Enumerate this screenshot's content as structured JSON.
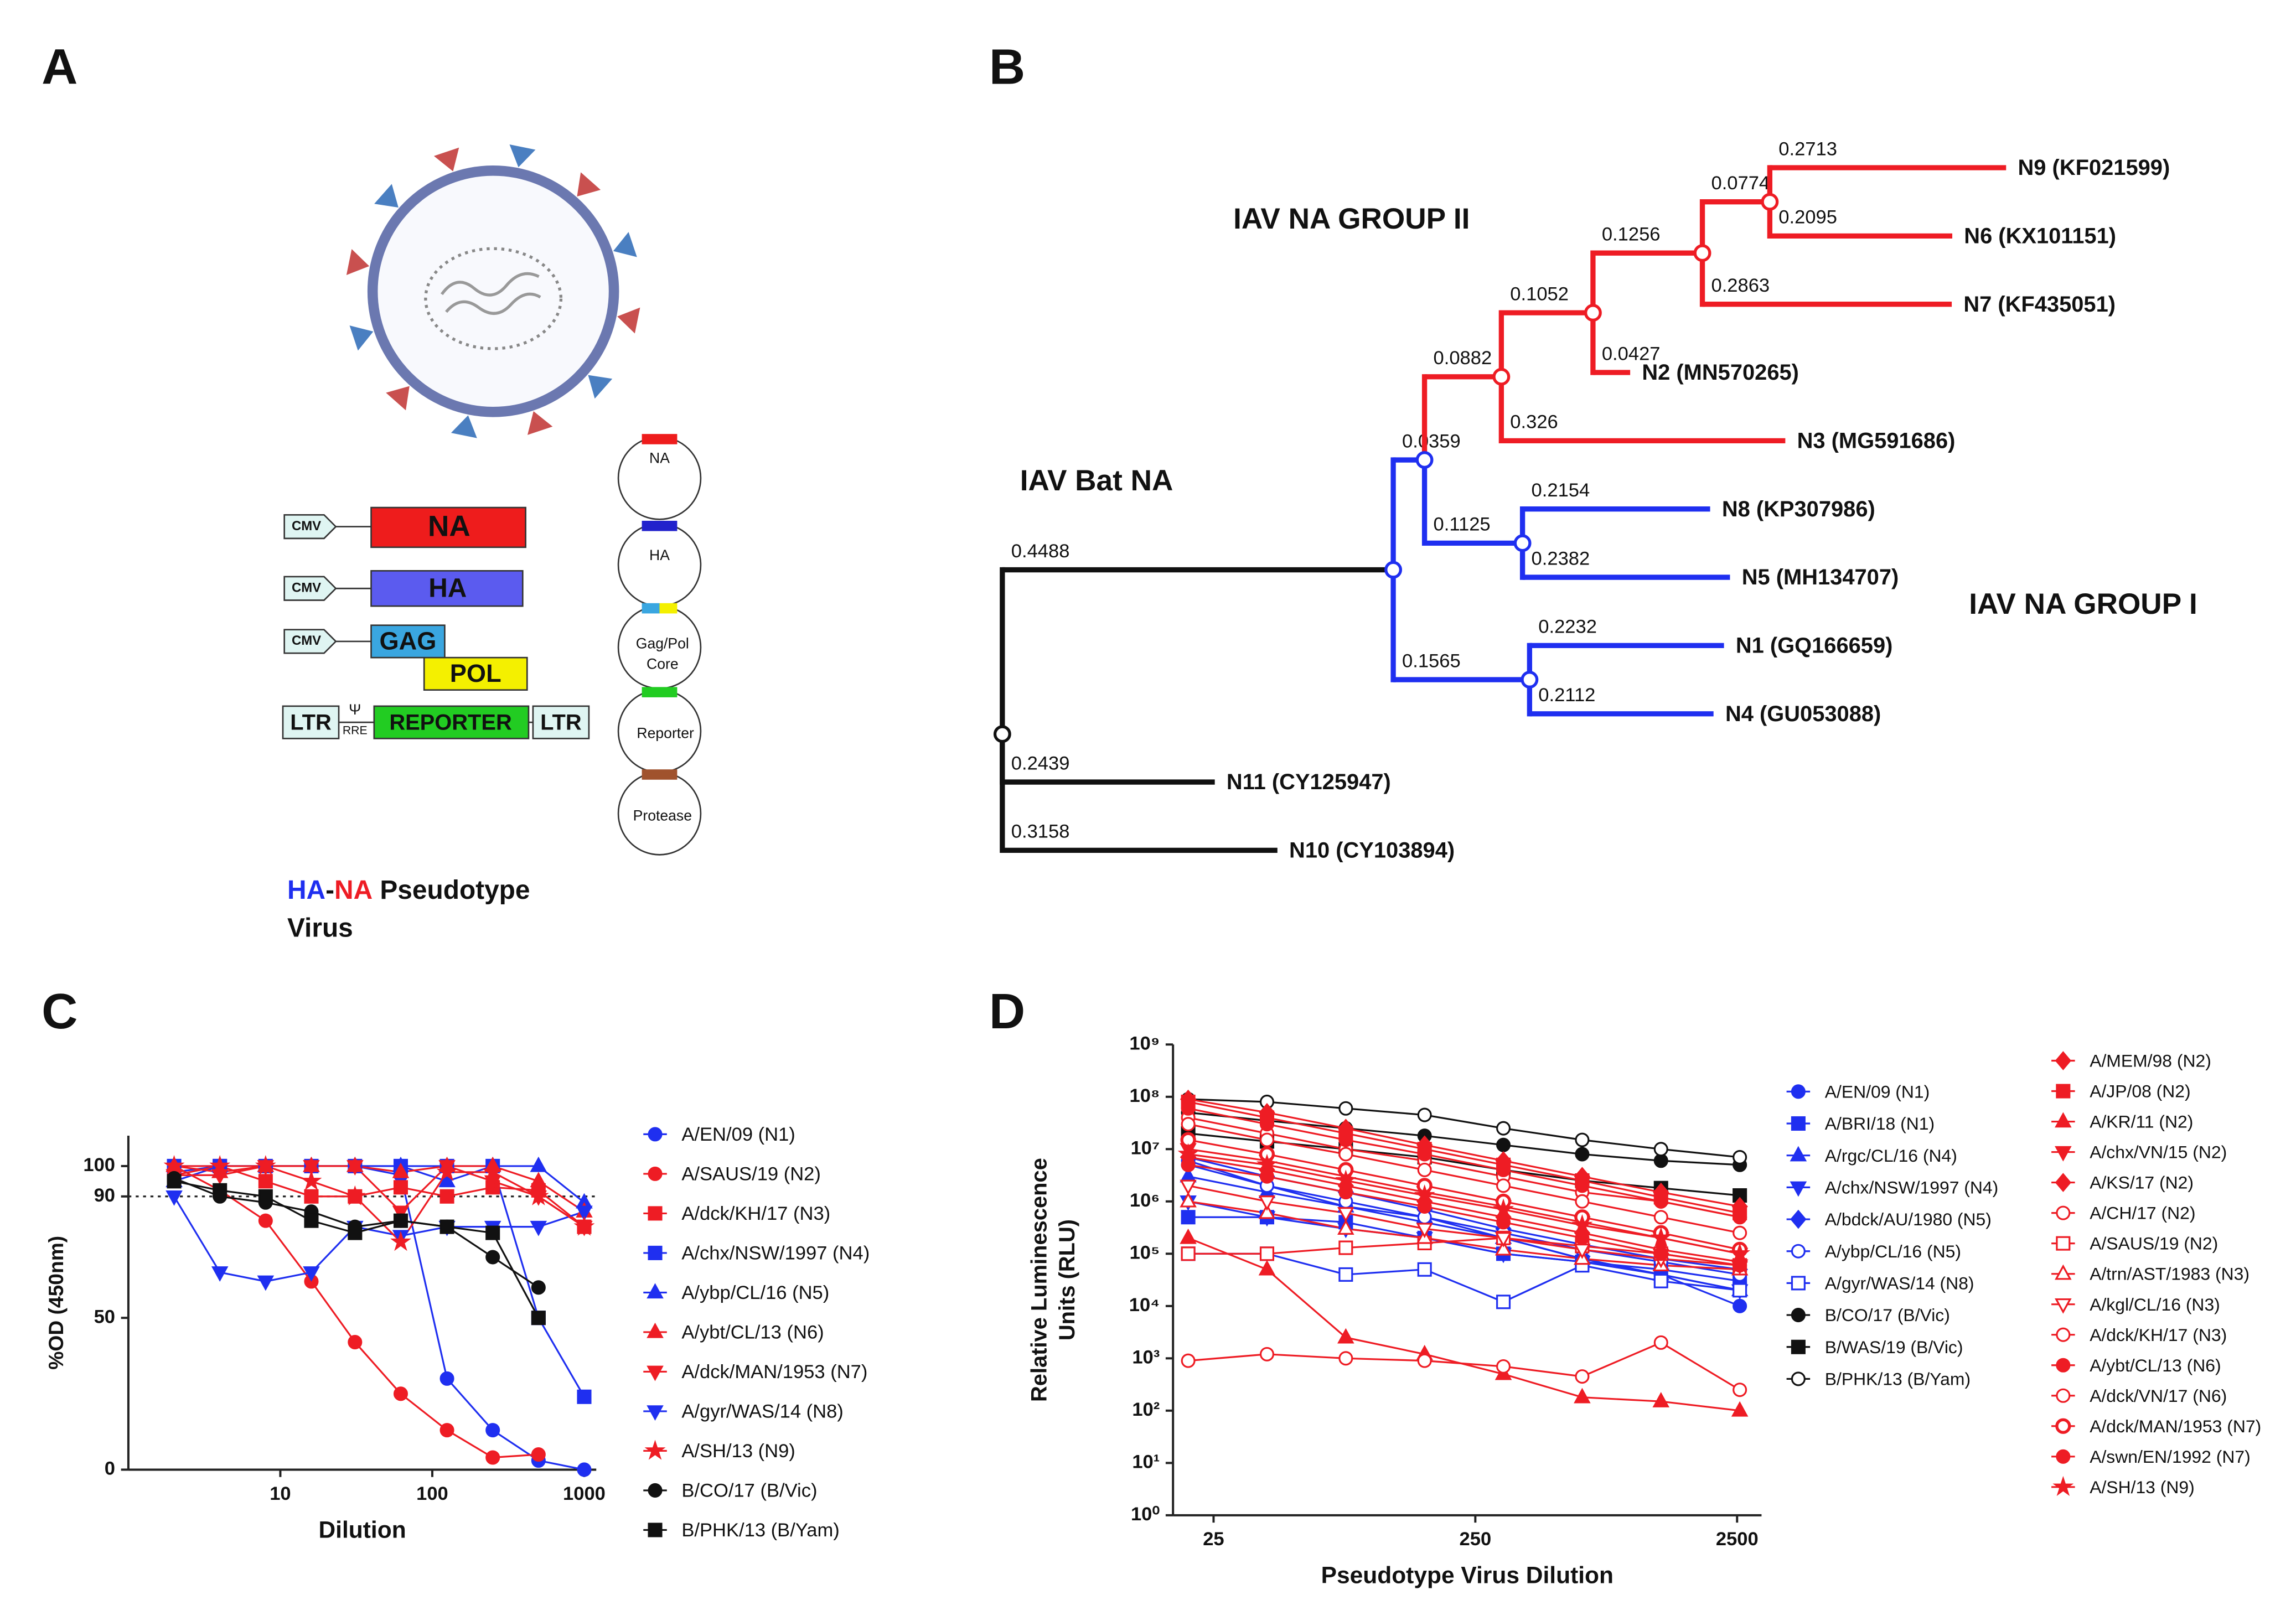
{
  "panel_a": {
    "label": "A",
    "genes": {
      "cmv": [
        "CMV",
        "CMV",
        "CMV"
      ],
      "na": "NA",
      "ha": "HA",
      "gag": "GAG",
      "pol": "POL",
      "ltr": [
        "LTR",
        "LTR"
      ],
      "psi": "Ψ",
      "rre": "RRE",
      "reporter": "REPORTER"
    },
    "plasmids": [
      [
        "NA"
      ],
      [
        "HA"
      ],
      [
        "Gag/Pol",
        "Core"
      ],
      [
        "Reporter"
      ],
      [
        "Protease"
      ]
    ],
    "caption": {
      "ha": "HA",
      "dash": "-",
      "na": "NA",
      "rest": "Pseudotype",
      "line2": "Virus"
    }
  },
  "panel_b": {
    "label": "B",
    "groups": [
      {
        "name": "IAV NA GROUP II",
        "color": "#ee1c24"
      },
      {
        "name": "IAV Bat NA",
        "color": "#111111"
      },
      {
        "name": "IAV NA GROUP I",
        "color": "#1f2ff0"
      }
    ],
    "tree": {
      "children": [
        {
          "length": 0.4488,
          "color": "#111111",
          "children": [
            {
              "length": 0.0359,
              "color": "#1f2ff0",
              "children": [
                {
                  "length": 0.0882,
                  "color": "#ee1c24",
                  "children": [
                    {
                      "length": 0.1052,
                      "color": "#ee1c24",
                      "children": [
                        {
                          "length": 0.1256,
                          "color": "#ee1c24",
                          "children": [
                            {
                              "length": 0.0774,
                              "color": "#ee1c24",
                              "children": [
                                {
                                  "length": 0.2713,
                                  "color": "#ee1c24",
                                  "name": "N9 (KF021599)"
                                },
                                {
                                  "length": 0.2095,
                                  "color": "#ee1c24",
                                  "name": "N6 (KX101151)"
                                }
                              ]
                            },
                            {
                              "length": 0.2863,
                              "color": "#ee1c24",
                              "name": "N7 (KF435051)"
                            }
                          ]
                        },
                        {
                          "length": 0.0427,
                          "color": "#ee1c24",
                          "name": "N2 (MN570265)"
                        }
                      ]
                    },
                    {
                      "length": 0.326,
                      "color": "#ee1c24",
                      "name": "N3 (MG591686)"
                    }
                  ]
                },
                {
                  "length": 0.1125,
                  "color": "#1f2ff0",
                  "children": [
                    {
                      "length": 0.2154,
                      "color": "#1f2ff0",
                      "name": "N8 (KP307986)"
                    },
                    {
                      "length": 0.2382,
                      "color": "#1f2ff0",
                      "name": "N5 (MH134707)"
                    }
                  ]
                }
              ]
            },
            {
              "length": 0.1565,
              "color": "#1f2ff0",
              "children": [
                {
                  "length": 0.2232,
                  "color": "#1f2ff0",
                  "name": "N1 (GQ166659)"
                },
                {
                  "length": 0.2112,
                  "color": "#1f2ff0",
                  "name": "N4 (GU053088)"
                }
              ]
            }
          ]
        },
        {
          "length": 0.2439,
          "color": "#111111",
          "name": "N11 (CY125947)"
        },
        {
          "length": 0.3158,
          "color": "#111111",
          "name": "N10 (CY103894)"
        }
      ]
    }
  },
  "chart_data": [
    {
      "type": "line",
      "label": "C",
      "xlabel": "Dilution",
      "ylabel": "%OD (450nm)",
      "x": [
        2,
        4,
        8,
        16,
        31,
        62,
        125,
        250,
        500,
        1000
      ],
      "xscale": "log",
      "xlim": [
        1,
        1200
      ],
      "xticks": [
        10,
        100,
        1000
      ],
      "ylim": [
        0,
        110
      ],
      "yticks": [
        0,
        50,
        90,
        100
      ],
      "reference_line": 90,
      "series": [
        {
          "name": "A/EN/09 (N1)",
          "color": "#1f2ff0",
          "marker": "circle",
          "values": [
            98,
            100,
            100,
            100,
            100,
            97,
            30,
            13,
            3,
            0
          ]
        },
        {
          "name": "A/SAUS/19 (N2)",
          "color": "#ee1c24",
          "marker": "circle",
          "values": [
            100,
            92,
            82,
            62,
            42,
            25,
            13,
            4,
            5,
            null
          ]
        },
        {
          "name": "A/dck/KH/17 (N3)",
          "color": "#ee1c24",
          "marker": "square",
          "values": [
            97,
            100,
            95,
            90,
            90,
            93,
            90,
            93,
            92,
            80
          ]
        },
        {
          "name": "A/chx/NSW/1997 (N4)",
          "color": "#1f2ff0",
          "marker": "square",
          "values": [
            100,
            100,
            100,
            100,
            100,
            100,
            100,
            100,
            50,
            24
          ]
        },
        {
          "name": "A/ybp/CL/16 (N5)",
          "color": "#1f2ff0",
          "marker": "triangle",
          "values": [
            95,
            100,
            100,
            100,
            100,
            100,
            95,
            100,
            100,
            88
          ]
        },
        {
          "name": "A/ybt/CL/13 (N6)",
          "color": "#ee1c24",
          "marker": "triangle",
          "values": [
            100,
            98,
            100,
            100,
            100,
            98,
            100,
            100,
            95,
            85
          ]
        },
        {
          "name": "A/dck/MAN/1953 (N7)",
          "color": "#ee1c24",
          "marker": "triangle-down",
          "values": [
            97,
            97,
            100,
            100,
            100,
            85,
            100,
            95,
            90,
            80
          ]
        },
        {
          "name": "A/gyr/WAS/14 (N8)",
          "color": "#1f2ff0",
          "marker": "triangle-down",
          "values": [
            90,
            65,
            62,
            65,
            80,
            77,
            80,
            80,
            80,
            85
          ]
        },
        {
          "name": "A/SH/13 (N9)",
          "color": "#ee1c24",
          "marker": "star",
          "values": [
            100,
            100,
            100,
            95,
            90,
            75,
            98,
            98,
            90,
            80
          ]
        },
        {
          "name": "B/CO/17 (B/Vic)",
          "color": "#111111",
          "marker": "circle",
          "values": [
            96,
            90,
            88,
            85,
            80,
            82,
            80,
            70,
            60,
            null
          ]
        },
        {
          "name": "B/PHK/13 (B/Yam)",
          "color": "#111111",
          "marker": "square",
          "values": [
            95,
            92,
            90,
            82,
            78,
            82,
            80,
            78,
            50,
            null
          ]
        }
      ]
    },
    {
      "type": "line",
      "label": "D",
      "xlabel": "Pseudotype Virus Dilution",
      "ylabel": [
        "Relative Luminescence",
        "Units (RLU)"
      ],
      "x": [
        20,
        40,
        80,
        160,
        320,
        640,
        1280,
        2560
      ],
      "xscale": "log",
      "xlim": [
        17.5,
        3100
      ],
      "xticks": [
        25,
        250,
        2500
      ],
      "yscale": "log",
      "ylim": [
        1,
        1000000000.0
      ],
      "yticks": [
        {
          "value": 1,
          "label": "10⁰"
        },
        {
          "value": 10,
          "label": "10¹"
        },
        {
          "value": 100,
          "label": "10²"
        },
        {
          "value": 1000,
          "label": "10³"
        },
        {
          "value": 10000.0,
          "label": "10⁴"
        },
        {
          "value": 100000.0,
          "label": "10⁵"
        },
        {
          "value": 1000000.0,
          "label": "10⁶"
        },
        {
          "value": 10000000.0,
          "label": "10⁷"
        },
        {
          "value": 100000000.0,
          "label": "10⁸"
        },
        {
          "value": 1000000000.0,
          "label": "10⁹"
        }
      ],
      "series": [
        {
          "name": "A/EN/09 (N1)",
          "color": "#1f2ff0",
          "marker": "circle",
          "values": [
            6000000.0,
            2000000.0,
            800000.0,
            400000.0,
            200000.0,
            80000.0,
            40000.0,
            10000.0
          ]
        },
        {
          "name": "A/BRI/18 (N1)",
          "color": "#1f2ff0",
          "marker": "square",
          "values": [
            500000.0,
            500000.0,
            400000.0,
            200000.0,
            100000.0,
            70000.0,
            50000.0,
            30000.0
          ]
        },
        {
          "name": "A/rgc/CL/16 (N4)",
          "color": "#1f2ff0",
          "marker": "triangle",
          "values": [
            3000000.0,
            1500000.0,
            800000.0,
            500000.0,
            200000.0,
            80000.0,
            40000.0,
            20000.0
          ]
        },
        {
          "name": "A/chx/NSW/1997 (N4)",
          "color": "#1f2ff0",
          "marker": "triangle-down",
          "values": [
            1000000.0,
            500000.0,
            300000.0,
            200000.0,
            100000.0,
            70000.0,
            40000.0,
            20000.0
          ]
        },
        {
          "name": "A/bdck/AU/1980 (N5)",
          "color": "#1f2ff0",
          "marker": "diamond",
          "values": [
            7000000.0,
            3000000.0,
            1500000.0,
            700000.0,
            300000.0,
            150000.0,
            80000.0,
            50000.0
          ]
        },
        {
          "name": "A/ybp/CL/16 (N5)",
          "color": "#1f2ff0",
          "marker": "circle-open",
          "values": [
            5000000.0,
            2000000.0,
            1000000.0,
            500000.0,
            250000.0,
            120000.0,
            70000.0,
            40000.0
          ]
        },
        {
          "name": "A/gyr/WAS/14 (N8)",
          "color": "#1f2ff0",
          "marker": "square-open",
          "values": [
            100000.0,
            100000.0,
            40000.0,
            50000.0,
            12000.0,
            60000.0,
            30000.0,
            20000.0
          ]
        },
        {
          "name": "B/CO/17 (B/Vic)",
          "color": "#111111",
          "marker": "circle",
          "values": [
            50000000.0,
            35000000.0,
            25000000.0,
            18000000.0,
            12000000.0,
            8000000.0,
            6000000.0,
            5000000.0
          ]
        },
        {
          "name": "B/WAS/19 (B/Vic)",
          "color": "#111111",
          "marker": "square",
          "values": [
            20000000.0,
            14000000.0,
            10000000.0,
            7000000.0,
            4000000.0,
            2500000.0,
            1800000.0,
            1300000.0
          ]
        },
        {
          "name": "B/PHK/13 (B/Yam)",
          "color": "#111111",
          "marker": "circle-open",
          "values": [
            90000000.0,
            80000000.0,
            60000000.0,
            45000000.0,
            25000000.0,
            15000000.0,
            10000000.0,
            7000000.0
          ]
        },
        {
          "name": "A/MEM/98 (N2)",
          "color": "#ee1c24",
          "marker": "diamond",
          "values": [
            90000000.0,
            50000000.0,
            25000000.0,
            12000000.0,
            6000000.0,
            3000000.0,
            1500000.0,
            800000.0
          ]
        },
        {
          "name": "A/JP/08 (N2)",
          "color": "#ee1c24",
          "marker": "square",
          "values": [
            80000000.0,
            40000000.0,
            20000000.0,
            10000000.0,
            5000000.0,
            2500000.0,
            1200000.0,
            600000.0
          ]
        },
        {
          "name": "A/KR/11 (N2)",
          "color": "#ee1c24",
          "marker": "triangle",
          "values": [
            200000.0,
            50000.0,
            2500.0,
            1200.0,
            500.0,
            180.0,
            150.0,
            100.0
          ]
        },
        {
          "name": "A/chx/VN/15 (N2)",
          "color": "#ee1c24",
          "marker": "triangle-down",
          "values": [
            10000000.0,
            6000000.0,
            3000000.0,
            1500000.0,
            800000.0,
            400000.0,
            200000.0,
            100000.0
          ]
        },
        {
          "name": "A/KS/17 (N2)",
          "color": "#ee1c24",
          "marker": "diamond",
          "values": [
            7000000.0,
            4000000.0,
            2000000.0,
            1000000.0,
            500000.0,
            250000.0,
            120000.0,
            70000.0
          ]
        },
        {
          "name": "A/CH/17 (N2)",
          "color": "#ee1c24",
          "marker": "circle-open",
          "values": [
            40000000.0,
            20000000.0,
            10000000.0,
            6000000.0,
            3000000.0,
            1500000.0,
            1000000.0,
            500000.0
          ]
        },
        {
          "name": "A/SAUS/19 (N2)",
          "color": "#ee1c24",
          "marker": "square-open",
          "values": [
            100000.0,
            100000.0,
            130000.0,
            160000.0,
            200000.0,
            140000.0,
            100000.0,
            60000.0
          ]
        },
        {
          "name": "A/trn/AST/1983 (N3)",
          "color": "#ee1c24",
          "marker": "triangle-open",
          "values": [
            1000000.0,
            600000.0,
            300000.0,
            200000.0,
            120000.0,
            80000.0,
            60000.0,
            50000.0
          ]
        },
        {
          "name": "A/kgl/CL/16 (N3)",
          "color": "#ee1c24",
          "marker": "triangle-down-open",
          "values": [
            2000000.0,
            1000000.0,
            600000.0,
            300000.0,
            200000.0,
            120000.0,
            80000.0,
            60000.0
          ]
        },
        {
          "name": "A/dck/KH/17 (N3)",
          "color": "#ee1c24",
          "marker": "circle-open",
          "values": [
            900.0,
            1200.0,
            1000.0,
            900.0,
            700.0,
            450.0,
            2000.0,
            250.0
          ]
        },
        {
          "name": "A/ybt/CL/13 (N6)",
          "color": "#ee1c24",
          "marker": "circle",
          "values": [
            5000000.0,
            3000000.0,
            1500000.0,
            800000.0,
            400000.0,
            200000.0,
            100000.0,
            60000.0
          ]
        },
        {
          "name": "A/dck/VN/17 (N6)",
          "color": "#ee1c24",
          "marker": "circle-open",
          "values": [
            30000000.0,
            15000000.0,
            8000000.0,
            4000000.0,
            2000000.0,
            1000000.0,
            500000.0,
            250000.0
          ]
        },
        {
          "name": "A/dck/MAN/1953 (N7)",
          "color": "#ee1c24",
          "marker": "circle-cross",
          "values": [
            15000000.0,
            8000000.0,
            4000000.0,
            2000000.0,
            1000000.0,
            500000.0,
            250000.0,
            120000.0
          ]
        },
        {
          "name": "A/swn/EN/1992 (N7)",
          "color": "#ee1c24",
          "marker": "circle",
          "values": [
            60000000.0,
            30000000.0,
            15000000.0,
            8000000.0,
            4000000.0,
            2000000.0,
            1000000.0,
            500000.0
          ]
        },
        {
          "name": "A/SH/13 (N9)",
          "color": "#ee1c24",
          "marker": "star",
          "values": [
            8000000.0,
            5000000.0,
            2500000.0,
            1300000.0,
            700000.0,
            350000.0,
            200000.0,
            100000.0
          ]
        }
      ]
    }
  ]
}
